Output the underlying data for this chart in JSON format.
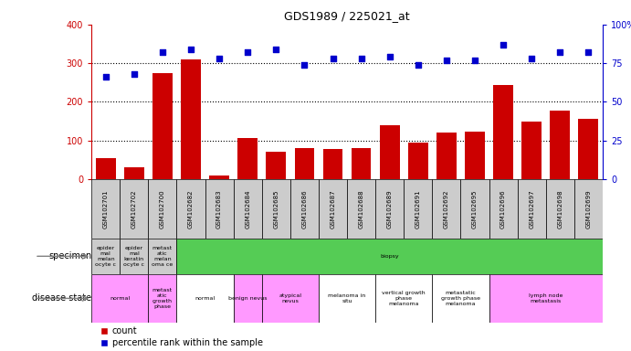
{
  "title": "GDS1989 / 225021_at",
  "samples": [
    "GSM102701",
    "GSM102702",
    "GSM102700",
    "GSM102682",
    "GSM102683",
    "GSM102684",
    "GSM102685",
    "GSM102686",
    "GSM102687",
    "GSM102688",
    "GSM102689",
    "GSM102691",
    "GSM102692",
    "GSM102695",
    "GSM102696",
    "GSM102697",
    "GSM102698",
    "GSM102699"
  ],
  "counts": [
    55,
    30,
    275,
    310,
    10,
    105,
    70,
    80,
    78,
    80,
    140,
    95,
    120,
    122,
    243,
    148,
    178,
    155
  ],
  "percentile_ranks": [
    66,
    68,
    82,
    84,
    78,
    82,
    84,
    74,
    78,
    78,
    79,
    74,
    77,
    77,
    87,
    78,
    82,
    82
  ],
  "ylim_left": [
    0,
    400
  ],
  "ylim_right": [
    0,
    100
  ],
  "yticks_left": [
    0,
    100,
    200,
    300,
    400
  ],
  "yticks_right": [
    0,
    25,
    50,
    75,
    100
  ],
  "bar_color": "#cc0000",
  "dot_color": "#0000cc",
  "background_color": "#ffffff",
  "tick_bg_color": "#cccccc",
  "specimen_groups": [
    {
      "label": "epider\nmal\nmelan\nocyte c",
      "start": 0,
      "end": 1,
      "color": "#cccccc"
    },
    {
      "label": "epider\nmal\nkeratin\nocyte c",
      "start": 1,
      "end": 2,
      "color": "#cccccc"
    },
    {
      "label": "metast\natic\nmelan\noma ce",
      "start": 2,
      "end": 3,
      "color": "#cccccc"
    },
    {
      "label": "biopsy",
      "start": 3,
      "end": 18,
      "color": "#55cc55"
    }
  ],
  "disease_groups": [
    {
      "label": "normal",
      "start": 0,
      "end": 3,
      "color": "#ff99ff"
    },
    {
      "label": "metast\natic\ngrowth\nphase",
      "start": 2,
      "end": 3,
      "color": "#ff99ff"
    },
    {
      "label": "normal",
      "start": 3,
      "end": 5,
      "color": "#ffffff"
    },
    {
      "label": "benign nevus",
      "start": 5,
      "end": 6,
      "color": "#ff99ff"
    },
    {
      "label": "atypical\nnevus",
      "start": 6,
      "end": 8,
      "color": "#ff99ff"
    },
    {
      "label": "melanoma in\nsitu",
      "start": 8,
      "end": 10,
      "color": "#ffffff"
    },
    {
      "label": "vertical growth\nphase\nmelanoma",
      "start": 10,
      "end": 12,
      "color": "#ffffff"
    },
    {
      "label": "metastatic\ngrowth phase\nmelanoma",
      "start": 12,
      "end": 14,
      "color": "#ffffff"
    },
    {
      "label": "lymph node\nmetastasis",
      "start": 14,
      "end": 18,
      "color": "#ff99ff"
    }
  ],
  "specimen_row_label": "specimen",
  "disease_row_label": "disease state",
  "legend_items": [
    {
      "label": "count",
      "color": "#cc0000"
    },
    {
      "label": "percentile rank within the sample",
      "color": "#0000cc"
    }
  ]
}
